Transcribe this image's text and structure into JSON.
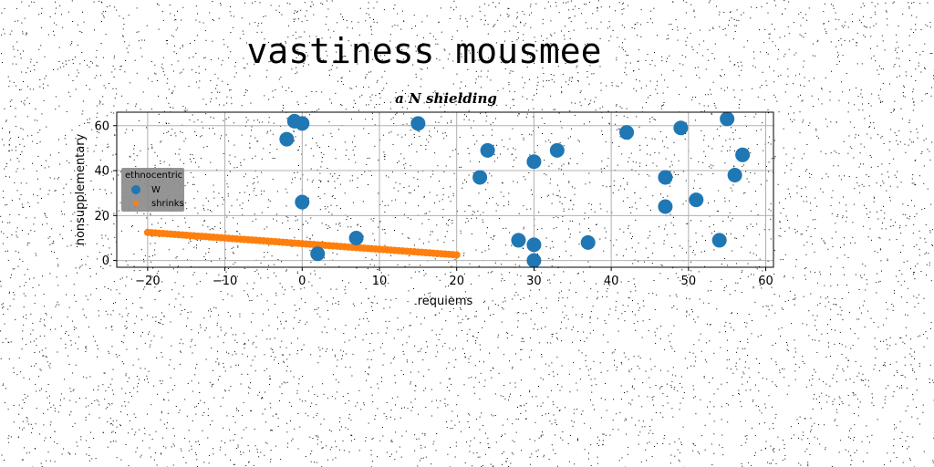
{
  "page_title": "vastiness mousmee",
  "chart_data": {
    "type": "scatter",
    "title": "a N shielding",
    "xlabel": "requiems",
    "ylabel": "nonsupplementary",
    "xlim": [
      -24,
      61
    ],
    "ylim": [
      -3,
      66
    ],
    "x_ticks": [
      -20,
      -10,
      0,
      10,
      20,
      30,
      40,
      50,
      60
    ],
    "x_tick_labels": [
      "−20",
      "−10",
      "0",
      "10",
      "20",
      "30",
      "40",
      "50",
      "60"
    ],
    "y_ticks": [
      0,
      20,
      40,
      60
    ],
    "y_tick_labels": [
      "0",
      "20",
      "40",
      "60"
    ],
    "grid": true,
    "legend": {
      "title": "ethnocentric",
      "placement": "center-left"
    },
    "series": [
      {
        "name": "W",
        "color": "#1f77b4",
        "marker": "circle-large",
        "points": [
          [
            -1,
            62
          ],
          [
            0,
            61
          ],
          [
            -2,
            54
          ],
          [
            15,
            61
          ],
          [
            0,
            26
          ],
          [
            2,
            3
          ],
          [
            7,
            10
          ],
          [
            23,
            37
          ],
          [
            24,
            49
          ],
          [
            28,
            9
          ],
          [
            30,
            44
          ],
          [
            30,
            7
          ],
          [
            30,
            0
          ],
          [
            33,
            49
          ],
          [
            37,
            8
          ],
          [
            42,
            57
          ],
          [
            47,
            37
          ],
          [
            47,
            24
          ],
          [
            49,
            59
          ],
          [
            51,
            27
          ],
          [
            54,
            9
          ],
          [
            55,
            63
          ],
          [
            56,
            38
          ],
          [
            57,
            47
          ]
        ]
      },
      {
        "name": "shrinks",
        "color": "#ff7f0e",
        "marker": "circle-small",
        "line": {
          "x_start": -20,
          "x_end": 20,
          "y_start": 12.5,
          "y_end": 2.5,
          "count": 81
        }
      }
    ]
  }
}
